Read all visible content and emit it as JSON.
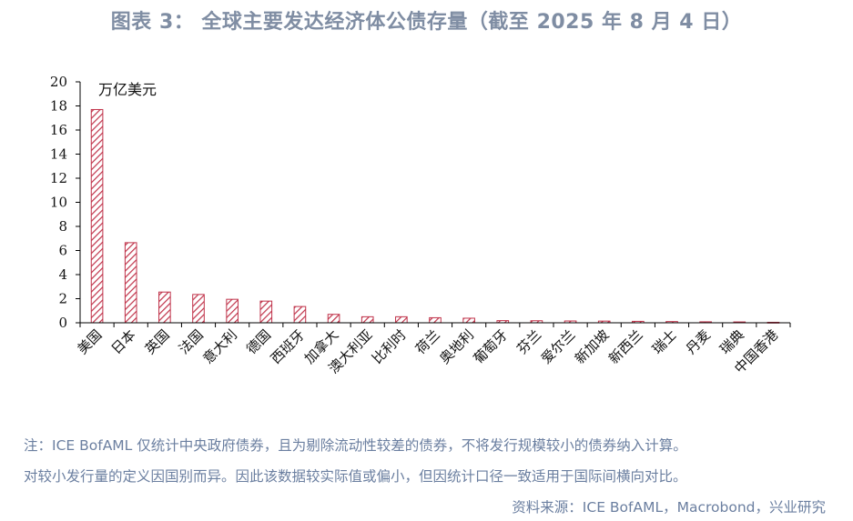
{
  "title": "图表 3：  全球主要发达经济体公债存量（截至 2025 年 8 月 4 日）",
  "chart_data": {
    "type": "bar",
    "unit_label": "万亿美元",
    "categories": [
      "美国",
      "日本",
      "英国",
      "法国",
      "意大利",
      "德国",
      "西班牙",
      "加拿大",
      "澳大利亚",
      "比利时",
      "荷兰",
      "奥地利",
      "葡萄牙",
      "芬兰",
      "爱尔兰",
      "新加坡",
      "新西兰",
      "瑞士",
      "丹麦",
      "瑞典",
      "中国香港"
    ],
    "values": [
      17.7,
      6.65,
      2.55,
      2.35,
      1.95,
      1.8,
      1.35,
      0.7,
      0.5,
      0.5,
      0.42,
      0.38,
      0.18,
      0.17,
      0.15,
      0.14,
      0.12,
      0.1,
      0.08,
      0.07,
      0.04
    ],
    "ylim": [
      0,
      20
    ],
    "yticks": [
      0,
      2,
      4,
      6,
      8,
      10,
      12,
      14,
      16,
      18,
      20
    ],
    "bar_color": "#c0334a",
    "grid": false
  },
  "notes": {
    "line1": "注：ICE BofAML 仅统计中央政府债券，且为剔除流动性较差的债券，不将发行规模较小的债券纳入计算。",
    "line2": "对较小发行量的定义因国别而异。因此该数据较实际值或偏小，但因统计口径一致适用于国际间横向对比。"
  },
  "source": "资料来源：ICE BofAML，Macrobond，兴业研究"
}
